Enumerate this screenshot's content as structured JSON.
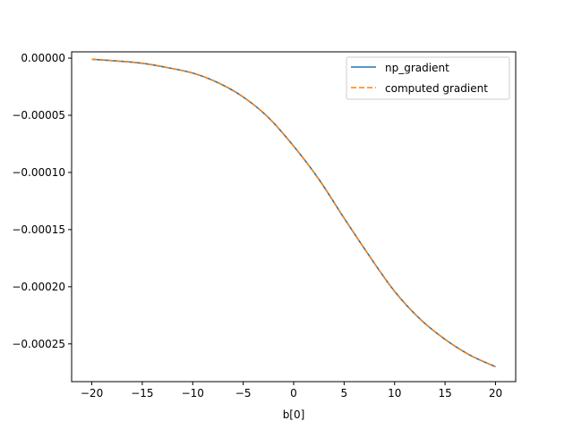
{
  "chart_data": {
    "type": "line",
    "title": "",
    "xlabel": "b[0]",
    "ylabel": "",
    "xlim": [
      -22,
      22
    ],
    "ylim": [
      -0.000283,
      5.5e-06
    ],
    "grid": false,
    "legend_position": "top-right",
    "x_ticks": [
      -20,
      -15,
      -10,
      -5,
      0,
      5,
      10,
      15,
      20
    ],
    "x_tick_labels": [
      "−20",
      "−15",
      "−10",
      "−5",
      "0",
      "5",
      "10",
      "15",
      "20"
    ],
    "y_ticks": [
      0.0,
      -5e-05,
      -0.0001,
      -0.00015,
      -0.0002,
      -0.00025
    ],
    "y_tick_labels": [
      "0.00000",
      "−0.00005",
      "−0.00010",
      "−0.00015",
      "−0.00020",
      "−0.00025"
    ],
    "x": [
      -20,
      -17.5,
      -15,
      -12.5,
      -10,
      -7.5,
      -5,
      -2.5,
      0,
      2.5,
      5,
      7.5,
      10,
      12.5,
      15,
      17.5,
      20
    ],
    "series": [
      {
        "name": "np_gradient",
        "color": "#1f77b4",
        "style": "solid",
        "values": [
          -1e-06,
          -2.5e-06,
          -4.5e-06,
          -8.3e-06,
          -1.31e-05,
          -2.15e-05,
          -3.4e-05,
          -5.2e-05,
          -7.7e-05,
          -0.000106,
          -0.00014,
          -0.000173,
          -0.000204,
          -0.000228,
          -0.000246,
          -0.00026,
          -0.00027
        ]
      },
      {
        "name": "computed gradient",
        "color": "#ff7f0e",
        "style": "dashed",
        "values": [
          -1e-06,
          -2.5e-06,
          -4.5e-06,
          -8.3e-06,
          -1.31e-05,
          -2.15e-05,
          -3.4e-05,
          -5.2e-05,
          -7.7e-05,
          -0.000106,
          -0.00014,
          -0.000173,
          -0.000204,
          -0.000228,
          -0.000246,
          -0.00026,
          -0.00027
        ]
      }
    ]
  }
}
